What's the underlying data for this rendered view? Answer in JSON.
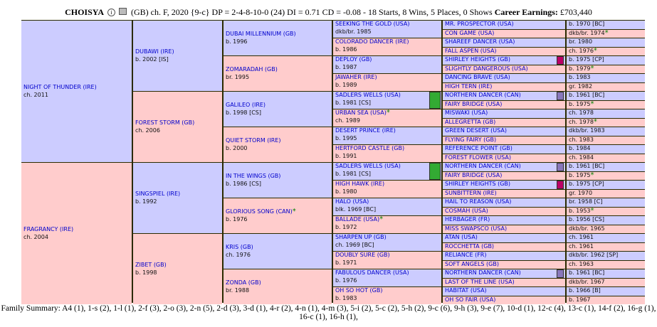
{
  "header": {
    "name": "CHOISYA",
    "details": "(GB) ch. F, 2020 {9-c} DP = 2-4-8-10-0 (24) DI = 0.71   CD = -0.08 - 18 Starts, 8 Wins, 5 Places, 0 Shows ",
    "earnings_label": "Career Earnings:",
    "earnings_value": "£703,440"
  },
  "gen1": [
    {
      "name": "NIGHT OF THUNDER (IRE)",
      "info": "ch. 2011"
    },
    {
      "name": "FRAGRANCY (IRE)",
      "info": "ch. 2004"
    }
  ],
  "gen2": [
    {
      "name": "DUBAWI (IRE)",
      "info": "b. 2002 [IS]"
    },
    {
      "name": "FOREST STORM (GB)",
      "info": "ch. 2006"
    },
    {
      "name": "SINGSPIEL (IRE)",
      "info": "b. 1992"
    },
    {
      "name": "ZIBET (GB)",
      "info": "b. 1998"
    }
  ],
  "gen3": [
    {
      "name": "DUBAI MILLENNIUM (GB)",
      "info": "b. 1996",
      "star": ""
    },
    {
      "name": "ZOMARADAH (GB)",
      "info": "br. 1995",
      "star": ""
    },
    {
      "name": "GALILEO (IRE)",
      "info": "b. 1998 [CS]",
      "star": ""
    },
    {
      "name": "QUIET STORM (IRE)",
      "info": "b. 2000",
      "star": ""
    },
    {
      "name": "IN THE WINGS (GB)",
      "info": "b. 1986 [CS]",
      "star": ""
    },
    {
      "name": "GLORIOUS SONG (CAN)",
      "info": "b. 1976",
      "star": "*"
    },
    {
      "name": "KRIS (GB)",
      "info": "ch. 1976",
      "star": ""
    },
    {
      "name": "ZONDA (GB)",
      "info": "br. 1988",
      "star": ""
    }
  ],
  "gen4": [
    {
      "name": "SEEKING THE GOLD (USA)",
      "info": "dkb/br. 1985",
      "star": ""
    },
    {
      "name": "COLORADO DANCER (IRE)",
      "info": "b. 1986",
      "star": ""
    },
    {
      "name": "DEPLOY (GB)",
      "info": "b. 1987",
      "star": ""
    },
    {
      "name": "JAWAHER (IRE)",
      "info": "b. 1989",
      "star": ""
    },
    {
      "name": "SADLERS WELLS (USA)",
      "info": "b. 1981 [CS]",
      "star": ""
    },
    {
      "name": "URBAN SEA (USA)",
      "info": "ch. 1989",
      "star": "*"
    },
    {
      "name": "DESERT PRINCE (IRE)",
      "info": "b. 1995",
      "star": ""
    },
    {
      "name": "HERTFORD CASTLE (GB)",
      "info": "b. 1991",
      "star": ""
    },
    {
      "name": "SADLERS WELLS (USA)",
      "info": "b. 1981 [CS]",
      "star": ""
    },
    {
      "name": "HIGH HAWK (IRE)",
      "info": "b. 1980",
      "star": ""
    },
    {
      "name": "HALO (USA)",
      "info": "blk. 1969 [BC]",
      "star": ""
    },
    {
      "name": "BALLADE (USA)",
      "info": "b. 1972",
      "star": "*"
    },
    {
      "name": "SHARPEN UP (GB)",
      "info": "ch. 1969 [BC]",
      "star": ""
    },
    {
      "name": "DOUBLY SURE (GB)",
      "info": "b. 1971",
      "star": ""
    },
    {
      "name": "FABULOUS DANCER (USA)",
      "info": "b. 1976",
      "star": ""
    },
    {
      "name": "OH SO HOT (GB)",
      "info": "b. 1983",
      "star": ""
    }
  ],
  "gen5": [
    {
      "name": "MR. PROSPECTOR (USA)",
      "info": "b. 1970 [BC]",
      "star": ""
    },
    {
      "name": "CON GAME (USA)",
      "info": "dkb/br. 1974",
      "star": "*"
    },
    {
      "name": "SHAREEF DANCER (USA)",
      "info": "br. 1980",
      "star": ""
    },
    {
      "name": "FALL ASPEN (USA)",
      "info": "ch. 1976",
      "star": "*"
    },
    {
      "name": "SHIRLEY HEIGHTS (GB)",
      "info": "b. 1975 [CP]",
      "star": ""
    },
    {
      "name": "SLIGHTLY DANGEROUS (USA)",
      "info": "b. 1979",
      "star": "*"
    },
    {
      "name": "DANCING BRAVE (USA)",
      "info": "b. 1983",
      "star": ""
    },
    {
      "name": "HIGH TERN (IRE)",
      "info": "gr. 1982",
      "star": ""
    },
    {
      "name": "NORTHERN DANCER (CAN)",
      "info": "b. 1961 [BC]",
      "star": ""
    },
    {
      "name": "FAIRY BRIDGE (USA)",
      "info": "b. 1975",
      "star": "*"
    },
    {
      "name": "MISWAKI (USA)",
      "info": "ch. 1978",
      "star": ""
    },
    {
      "name": "ALLEGRETTA (GB)",
      "info": "ch. 1978",
      "star": "*"
    },
    {
      "name": "GREEN DESERT (USA)",
      "info": "dkb/br. 1983",
      "star": ""
    },
    {
      "name": "FLYING FAIRY (GB)",
      "info": "ch. 1983",
      "star": ""
    },
    {
      "name": "REFERENCE POINT (GB)",
      "info": "b. 1984",
      "star": ""
    },
    {
      "name": "FOREST FLOWER (USA)",
      "info": "ch. 1984",
      "star": ""
    },
    {
      "name": "NORTHERN DANCER (CAN)",
      "info": "b. 1961 [BC]",
      "star": ""
    },
    {
      "name": "FAIRY BRIDGE (USA)",
      "info": "b. 1975",
      "star": "*"
    },
    {
      "name": "SHIRLEY HEIGHTS (GB)",
      "info": "b. 1975 [CP]",
      "star": ""
    },
    {
      "name": "SUNBITTERN (IRE)",
      "info": "gr. 1970",
      "star": ""
    },
    {
      "name": "HAIL TO REASON (USA)",
      "info": "br. 1958 [C]",
      "star": ""
    },
    {
      "name": "COSMAH (USA)",
      "info": "b. 1953",
      "star": "*"
    },
    {
      "name": "HERBAGER (FR)",
      "info": "b. 1956 [CS]",
      "star": ""
    },
    {
      "name": "MISS SWAPSCO (USA)",
      "info": "dkb/br. 1965",
      "star": ""
    },
    {
      "name": "ATAN (USA)",
      "info": "ch. 1961",
      "star": ""
    },
    {
      "name": "ROCCHETTA (GB)",
      "info": "ch. 1961",
      "star": ""
    },
    {
      "name": "RELIANCE (FR)",
      "info": "dkb/br. 1962 [SP]",
      "star": ""
    },
    {
      "name": "SOFT ANGELS (GB)",
      "info": "ch. 1963",
      "star": ""
    },
    {
      "name": "NORTHERN DANCER (CAN)",
      "info": "b. 1961 [BC]",
      "star": ""
    },
    {
      "name": "LAST OF THE LINE (USA)",
      "info": "dkb/br. 1967",
      "star": ""
    },
    {
      "name": "HABITAT (USA)",
      "info": "b. 1966 [B]",
      "star": ""
    },
    {
      "name": "OH SO FAIR (USA)",
      "info": "b. 1967",
      "star": ""
    }
  ],
  "markers": {
    "green": "#33aa33",
    "magenta": "#bb0066",
    "purple": "#8877bb"
  },
  "footer": "Family Summary: A4 (1), 1-s (2), 1-l (1), 2-f (3), 2-o (3), 2-n (5), 2-d (3), 3-d (1), 4-r (2), 4-n (1), 4-m (3), 5-i (2), 5-c (2), 5-h (2), 9-c (6), 9-h (3), 9-e (7), 10-d (1), 12-c (4), 13-c (1), 14-f (2), 16-g (1), 16-c (1), 16-h (1),"
}
